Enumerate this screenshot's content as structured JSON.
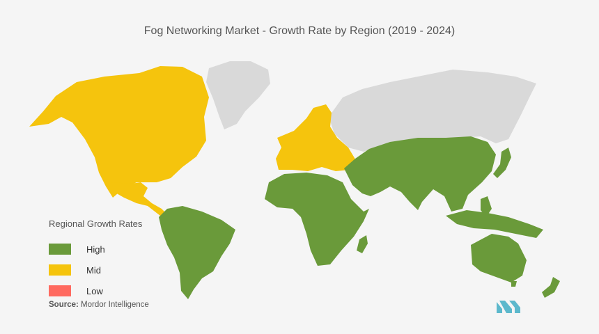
{
  "title": "Fog Networking Market  - Growth Rate by Region (2019 - 2024)",
  "legend": {
    "title": "Regional Growth Rates",
    "items": [
      {
        "label": "High",
        "color": "#6a9a3a"
      },
      {
        "label": "Mid",
        "color": "#f5c40d"
      },
      {
        "label": "Low",
        "color": "#ff6a60"
      }
    ]
  },
  "source": {
    "label": "Source:",
    "text": "Mordor Intelligence"
  },
  "colors": {
    "background": "#f5f5f5",
    "no_data": "#d9d9d9",
    "logo": "#5cb8cc"
  },
  "regions": [
    {
      "name": "North America",
      "level": "Mid"
    },
    {
      "name": "Europe",
      "level": "Mid"
    },
    {
      "name": "Latin America",
      "level": "High"
    },
    {
      "name": "Middle East and Africa",
      "level": "High"
    },
    {
      "name": "Asia-Pacific",
      "level": "High"
    }
  ]
}
